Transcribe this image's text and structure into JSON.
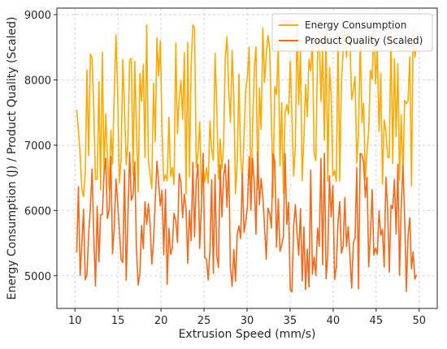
{
  "chart_data": {
    "type": "line",
    "title": "",
    "xlabel": "Extrusion Speed (mm/s)",
    "ylabel": "Energy Consumption (J) / Product Quality (Scaled)",
    "xlim": [
      7.9,
      52.1
    ],
    "ylim": [
      4500,
      9100
    ],
    "xticks": [
      10,
      15,
      20,
      25,
      30,
      35,
      40,
      45,
      50
    ],
    "yticks": [
      5000,
      6000,
      7000,
      8000,
      9000
    ],
    "grid": true,
    "legend_position": "top-right",
    "seed": 20240517,
    "n_points": 200,
    "x_range": [
      10.2,
      49.7
    ],
    "series": [
      {
        "name": "Energy Consumption",
        "color": "#FFAA00",
        "range": [
          6200,
          8900
        ]
      },
      {
        "name": "Product Quality (Scaled)",
        "color": "#F26A1B",
        "range": [
          4750,
          6900
        ]
      }
    ]
  }
}
